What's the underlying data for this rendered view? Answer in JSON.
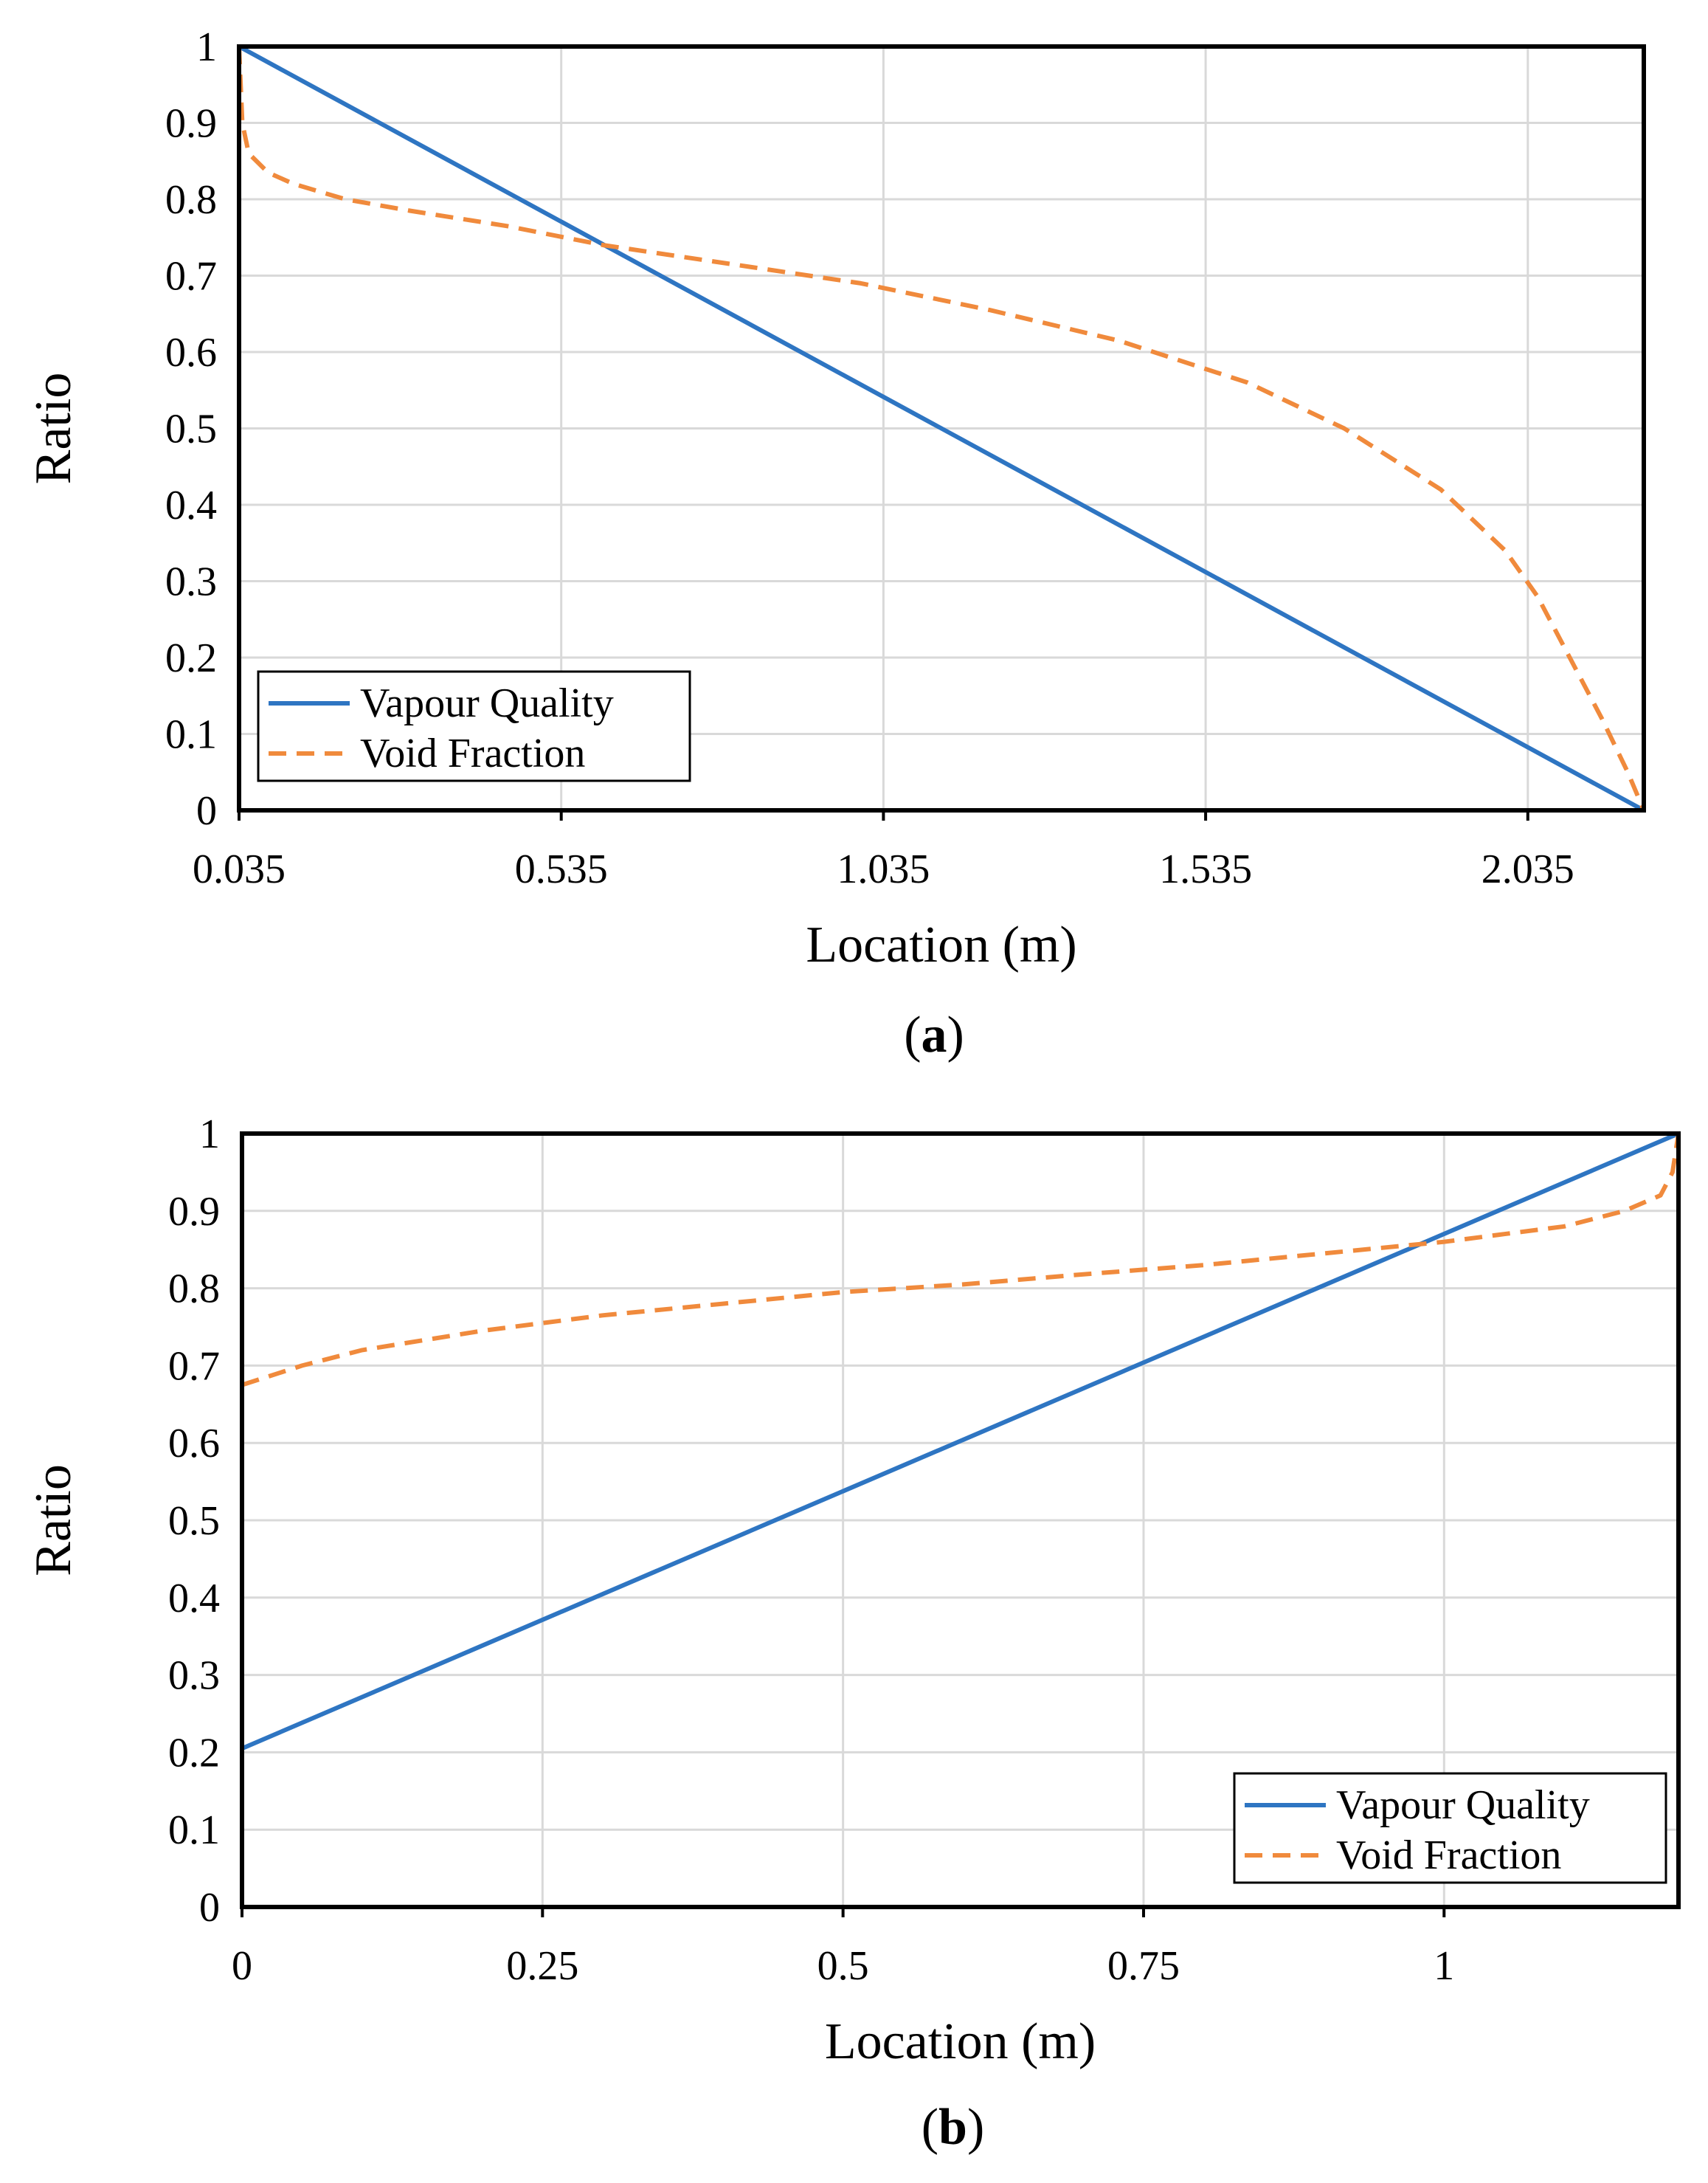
{
  "chart_data": [
    {
      "type": "line",
      "caption": "(a)",
      "caption_letter": "a",
      "xlabel": "Location (m)",
      "ylabel": "Ratio",
      "xlim": [
        0.035,
        2.215
      ],
      "ylim": [
        0,
        1
      ],
      "x_ticks": [
        0.035,
        0.535,
        1.035,
        1.535,
        2.035
      ],
      "x_tick_labels": [
        "0.035",
        "0.535",
        "1.035",
        "1.535",
        "2.035"
      ],
      "y_ticks": [
        0,
        0.1,
        0.2,
        0.3,
        0.4,
        0.5,
        0.6,
        0.7,
        0.8,
        0.9,
        1
      ],
      "y_tick_labels": [
        "0",
        "0.1",
        "0.2",
        "0.3",
        "0.4",
        "0.5",
        "0.6",
        "0.7",
        "0.8",
        "0.9",
        "1"
      ],
      "grid": true,
      "legend_position": "bottom-left",
      "series": [
        {
          "name": "Vapour Quality",
          "color": "#2e75c2",
          "style": "solid",
          "x": [
            0.035,
            2.215
          ],
          "y": [
            1.0,
            0.0
          ]
        },
        {
          "name": "Void Fraction",
          "color": "#f08a3c",
          "style": "dashed",
          "x": [
            0.035,
            0.04,
            0.05,
            0.08,
            0.12,
            0.2,
            0.3,
            0.45,
            0.6,
            0.8,
            1.0,
            1.2,
            1.4,
            1.6,
            1.75,
            1.9,
            2.0,
            2.05,
            2.1,
            2.15,
            2.19,
            2.215
          ],
          "y": [
            1.0,
            0.9,
            0.86,
            0.835,
            0.82,
            0.8,
            0.785,
            0.765,
            0.74,
            0.715,
            0.69,
            0.655,
            0.615,
            0.56,
            0.5,
            0.42,
            0.34,
            0.28,
            0.2,
            0.12,
            0.05,
            0.0
          ]
        }
      ]
    },
    {
      "type": "line",
      "caption": "(b)",
      "caption_letter": "b",
      "xlabel": "Location (m)",
      "ylabel": "Ratio",
      "xlim": [
        0,
        1.195
      ],
      "ylim": [
        0,
        1
      ],
      "x_ticks": [
        0,
        0.25,
        0.5,
        0.75,
        1
      ],
      "x_tick_labels": [
        "0",
        "0.25",
        "0.5",
        "0.75",
        "1"
      ],
      "y_ticks": [
        0,
        0.1,
        0.2,
        0.3,
        0.4,
        0.5,
        0.6,
        0.7,
        0.8,
        0.9,
        1
      ],
      "y_tick_labels": [
        "0",
        "0.1",
        "0.2",
        "0.3",
        "0.4",
        "0.5",
        "0.6",
        "0.7",
        "0.8",
        "0.9",
        "1"
      ],
      "grid": true,
      "legend_position": "bottom-right",
      "series": [
        {
          "name": "Vapour Quality",
          "color": "#2e75c2",
          "style": "solid",
          "x": [
            0,
            1.195
          ],
          "y": [
            0.205,
            1.0
          ]
        },
        {
          "name": "Void Fraction",
          "color": "#f08a3c",
          "style": "dashed",
          "x": [
            0,
            0.05,
            0.1,
            0.2,
            0.3,
            0.4,
            0.5,
            0.6,
            0.7,
            0.8,
            0.9,
            1.0,
            1.05,
            1.1,
            1.15,
            1.18,
            1.19,
            1.195
          ],
          "y": [
            0.675,
            0.7,
            0.72,
            0.745,
            0.765,
            0.78,
            0.795,
            0.805,
            0.818,
            0.83,
            0.845,
            0.86,
            0.87,
            0.88,
            0.9,
            0.92,
            0.95,
            1.0
          ]
        }
      ]
    }
  ]
}
